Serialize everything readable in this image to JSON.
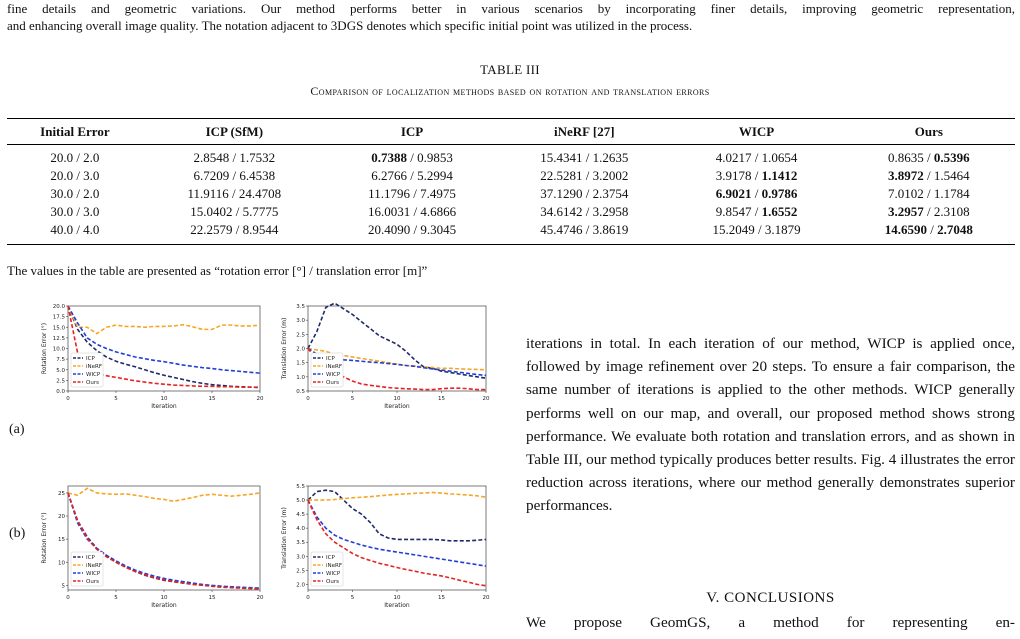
{
  "caption_top": {
    "line1": "fine details and geometric variations. Our method performs better in various scenarios by incorporating finer details, improving geometric representation,",
    "line2": "and enhancing overall image quality. The notation adjacent to 3DGS denotes which specific initial point was utilized in the process."
  },
  "table": {
    "label": "TABLE III",
    "title": "Comparison of localization methods based on rotation and translation errors",
    "headers": [
      "Initial Error",
      "ICP (SfM)",
      "ICP",
      "iNeRF [27]",
      "WICP",
      "Ours"
    ],
    "rows": [
      [
        {
          "a": "20.0 / 2.0"
        },
        {
          "a": "2.8548",
          "b": "1.7532"
        },
        {
          "a": "0.7388",
          "b": "0.9853",
          "ba": true
        },
        {
          "a": "15.4341",
          "b": "1.2635"
        },
        {
          "a": "4.0217",
          "b": "1.0654"
        },
        {
          "a": "0.8635",
          "b": "0.5396",
          "bb": true
        }
      ],
      [
        {
          "a": "20.0 / 3.0"
        },
        {
          "a": "6.7209",
          "b": "6.4538"
        },
        {
          "a": "6.2766",
          "b": "5.2994"
        },
        {
          "a": "22.5281",
          "b": "3.2002"
        },
        {
          "a": "3.9178",
          "b": "1.1412",
          "bb": true
        },
        {
          "a": "3.8972",
          "b": "1.5464",
          "ba": true
        }
      ],
      [
        {
          "a": "30.0 / 2.0"
        },
        {
          "a": "11.9116",
          "b": "24.4708"
        },
        {
          "a": "11.1796",
          "b": "7.4975"
        },
        {
          "a": "37.1290",
          "b": "2.3754"
        },
        {
          "a": "6.9021",
          "b": "0.9786",
          "ba": true,
          "bb": true
        },
        {
          "a": "7.0102",
          "b": "1.1784"
        }
      ],
      [
        {
          "a": "30.0 / 3.0"
        },
        {
          "a": "15.0402",
          "b": "5.7775"
        },
        {
          "a": "16.0031",
          "b": "4.6866"
        },
        {
          "a": "34.6142",
          "b": "3.2958"
        },
        {
          "a": "9.8547",
          "b": "1.6552",
          "bb": true
        },
        {
          "a": "3.2957",
          "b": "2.3108",
          "ba": true
        }
      ],
      [
        {
          "a": "40.0 / 4.0"
        },
        {
          "a": "22.2579",
          "b": "8.9544"
        },
        {
          "a": "20.4090",
          "b": "9.3045"
        },
        {
          "a": "45.4746",
          "b": "3.8619"
        },
        {
          "a": "15.2049",
          "b": "3.1879"
        },
        {
          "a": "14.6590",
          "b": "2.7048",
          "ba": true,
          "bb": true
        }
      ]
    ],
    "note": "The values in the table are presented as “rotation error [°] / translation error [m]”"
  },
  "figure": {
    "panel_a": "(a)",
    "panel_b": "(b)"
  },
  "chart_data": [
    {
      "type": "line",
      "panel": "(a)",
      "xlabel": "Iteration",
      "ylabel": "Rotation Error (°)",
      "xlim": [
        0,
        20
      ],
      "ylim": [
        0,
        20
      ],
      "xticks": [
        0,
        5,
        10,
        15,
        20
      ],
      "yticks": [
        0.0,
        2.5,
        5.0,
        7.5,
        10.0,
        12.5,
        15.0,
        17.5,
        20.0
      ],
      "ytick_labels": [
        "0.0",
        "2.5",
        "5.0",
        "7.5",
        "10.0",
        "12.5",
        "15.0",
        "17.5",
        "20.0"
      ],
      "legend": "lower-left",
      "x": [
        0,
        1,
        2,
        3,
        4,
        5,
        6,
        7,
        8,
        9,
        10,
        11,
        12,
        13,
        14,
        15,
        16,
        17,
        18,
        19,
        20
      ],
      "series": [
        {
          "name": "ICP",
          "color": "#1f2a6b",
          "values": [
            20,
            14.5,
            11.5,
            9.5,
            8,
            7,
            6.3,
            5.7,
            5,
            4.3,
            3.7,
            3.2,
            2.7,
            2.2,
            1.8,
            1.5,
            1.3,
            1.1,
            1.0,
            0.9,
            0.8
          ]
        },
        {
          "name": "iNeRF",
          "color": "#f5a623",
          "values": [
            20,
            15,
            15,
            13.5,
            15,
            15.5,
            15.2,
            15.2,
            15,
            15.2,
            15.2,
            15.3,
            15.6,
            15.1,
            14.5,
            14.5,
            15.5,
            15.5,
            15.3,
            15.3,
            15.5
          ]
        },
        {
          "name": "WICP",
          "color": "#1f3fd8",
          "values": [
            20,
            16,
            12.5,
            11,
            10,
            9.2,
            8.6,
            8,
            7.6,
            7.2,
            6.9,
            6.5,
            6.1,
            5.8,
            5.5,
            5.3,
            5,
            4.8,
            4.6,
            4.4,
            4.2
          ]
        },
        {
          "name": "Ours",
          "color": "#e62222",
          "values": [
            20,
            9,
            5,
            4,
            3.6,
            3.2,
            2.8,
            2.4,
            2.1,
            1.8,
            1.6,
            1.4,
            1.3,
            1.2,
            1.1,
            1.1,
            1.0,
            1.0,
            0.9,
            0.9,
            0.9
          ]
        }
      ]
    },
    {
      "type": "line",
      "panel": "(a)",
      "xlabel": "Iteration",
      "ylabel": "Translation Error (m)",
      "xlim": [
        0,
        20
      ],
      "ylim": [
        0.5,
        3.5
      ],
      "xticks": [
        0,
        5,
        10,
        15,
        20
      ],
      "yticks": [
        0.5,
        1.0,
        1.5,
        2.0,
        2.5,
        3.0,
        3.5
      ],
      "ytick_labels": [
        "0.5",
        "1.0",
        "1.5",
        "2.0",
        "2.5",
        "3.0",
        "3.5"
      ],
      "legend": "lower-left",
      "x": [
        0,
        1,
        2,
        3,
        4,
        5,
        6,
        7,
        8,
        9,
        10,
        11,
        12,
        13,
        14,
        15,
        16,
        17,
        18,
        19,
        20
      ],
      "series": [
        {
          "name": "ICP",
          "color": "#1f2a6b",
          "values": [
            2.0,
            2.6,
            3.45,
            3.6,
            3.4,
            3.2,
            2.95,
            2.7,
            2.45,
            2.3,
            2.15,
            1.9,
            1.6,
            1.35,
            1.3,
            1.2,
            1.15,
            1.1,
            1.05,
            1.0,
            0.95
          ]
        },
        {
          "name": "iNeRF",
          "color": "#f5a623",
          "values": [
            2.0,
            1.95,
            1.9,
            1.8,
            1.75,
            1.7,
            1.65,
            1.6,
            1.55,
            1.5,
            1.45,
            1.4,
            1.38,
            1.35,
            1.33,
            1.3,
            1.3,
            1.28,
            1.27,
            1.26,
            1.25
          ]
        },
        {
          "name": "WICP",
          "color": "#1f3fd8",
          "values": [
            2.0,
            1.8,
            1.7,
            1.65,
            1.6,
            1.58,
            1.55,
            1.52,
            1.5,
            1.47,
            1.44,
            1.4,
            1.37,
            1.32,
            1.28,
            1.24,
            1.2,
            1.16,
            1.12,
            1.08,
            1.05
          ]
        },
        {
          "name": "Ours",
          "color": "#e62222",
          "values": [
            2.0,
            1.6,
            1.3,
            1.1,
            1.0,
            0.85,
            0.75,
            0.7,
            0.66,
            0.62,
            0.6,
            0.58,
            0.57,
            0.55,
            0.55,
            0.58,
            0.6,
            0.6,
            0.58,
            0.55,
            0.55
          ]
        }
      ]
    },
    {
      "type": "line",
      "panel": "(b)",
      "xlabel": "Iteration",
      "ylabel": "Rotation Error (°)",
      "xlim": [
        0,
        20
      ],
      "ylim": [
        4,
        26.5
      ],
      "xticks": [
        0,
        5,
        10,
        15,
        20
      ],
      "yticks": [
        5,
        10,
        15,
        20,
        25
      ],
      "ytick_labels": [
        "5",
        "10",
        "15",
        "20",
        "25"
      ],
      "legend": "lower-left",
      "x": [
        0,
        1,
        2,
        3,
        4,
        5,
        6,
        7,
        8,
        9,
        10,
        11,
        12,
        13,
        14,
        15,
        16,
        17,
        18,
        19,
        20
      ],
      "series": [
        {
          "name": "ICP",
          "color": "#1f2a6b",
          "values": [
            25,
            19,
            15.5,
            13,
            11.5,
            10,
            9,
            8,
            7.2,
            6.6,
            6.1,
            5.8,
            5.5,
            5.3,
            5.1,
            4.9,
            4.8,
            4.6,
            4.5,
            4.4,
            4.3
          ]
        },
        {
          "name": "iNeRF",
          "color": "#f5a623",
          "values": [
            25,
            24.5,
            26,
            25,
            24.8,
            24.7,
            24.8,
            24.5,
            24.2,
            23.8,
            23.6,
            23.2,
            23.6,
            24,
            24.5,
            24.7,
            24.5,
            24.3,
            24.5,
            24.7,
            25
          ]
        },
        {
          "name": "WICP",
          "color": "#1f3fd8",
          "values": [
            25,
            18.5,
            15,
            13,
            11.5,
            10.3,
            9.2,
            8.3,
            7.6,
            7,
            6.5,
            6.1,
            5.8,
            5.5,
            5.2,
            5,
            4.8,
            4.7,
            4.6,
            4.5,
            4.4
          ]
        },
        {
          "name": "Ours",
          "color": "#e62222",
          "values": [
            25,
            19,
            15.2,
            12.8,
            11.2,
            10,
            8.9,
            8,
            7.3,
            6.7,
            6.2,
            5.8,
            5.5,
            5.2,
            5,
            4.8,
            4.6,
            4.5,
            4.4,
            4.3,
            4.2
          ]
        }
      ]
    },
    {
      "type": "line",
      "panel": "(b)",
      "xlabel": "Iteration",
      "ylabel": "Translation Error (m)",
      "xlim": [
        0,
        20
      ],
      "ylim": [
        1.8,
        5.5
      ],
      "xticks": [
        0,
        5,
        10,
        15,
        20
      ],
      "yticks": [
        2.0,
        2.5,
        3.0,
        3.5,
        4.0,
        4.5,
        5.0,
        5.5
      ],
      "ytick_labels": [
        "2.0",
        "2.5",
        "3.0",
        "3.5",
        "4.0",
        "4.5",
        "5.0",
        "5.5"
      ],
      "legend": "lower-left",
      "x": [
        0,
        1,
        2,
        3,
        4,
        5,
        6,
        7,
        8,
        9,
        10,
        11,
        12,
        13,
        14,
        15,
        16,
        17,
        18,
        19,
        20
      ],
      "series": [
        {
          "name": "ICP",
          "color": "#1f2a6b",
          "values": [
            5.0,
            5.3,
            5.35,
            5.3,
            5.0,
            4.7,
            4.5,
            4.2,
            3.8,
            3.65,
            3.6,
            3.6,
            3.6,
            3.6,
            3.6,
            3.58,
            3.55,
            3.55,
            3.55,
            3.57,
            3.6
          ]
        },
        {
          "name": "iNeRF",
          "color": "#f5a623",
          "values": [
            5.0,
            5.0,
            5.0,
            5.02,
            5.05,
            5.08,
            5.1,
            5.12,
            5.15,
            5.18,
            5.2,
            5.22,
            5.24,
            5.25,
            5.27,
            5.25,
            5.22,
            5.2,
            5.18,
            5.15,
            5.1
          ]
        },
        {
          "name": "WICP",
          "color": "#1f3fd8",
          "values": [
            5.0,
            4.4,
            4.0,
            3.75,
            3.6,
            3.5,
            3.4,
            3.32,
            3.25,
            3.2,
            3.15,
            3.1,
            3.05,
            3.0,
            2.95,
            2.9,
            2.85,
            2.8,
            2.75,
            2.7,
            2.65
          ]
        },
        {
          "name": "Ours",
          "color": "#e62222",
          "values": [
            5.0,
            4.3,
            3.8,
            3.5,
            3.3,
            3.1,
            2.95,
            2.85,
            2.75,
            2.68,
            2.6,
            2.53,
            2.47,
            2.4,
            2.35,
            2.3,
            2.23,
            2.15,
            2.08,
            2.0,
            1.95
          ]
        }
      ]
    }
  ],
  "body_text": "iterations in total. In each iteration of our method, WICP is applied once, followed by image refinement over 20 steps. To ensure a fair comparison, the same number of iterations is applied to the other methods. WICP generally performs well on our map, and overall, our proposed method shows strong performance. We evaluate both rotation and translation errors, and as shown in Table III, our method typically produces better results. Fig. 4 illustrates the error reduction across iterations, where our method generally demonstrates superior performances.",
  "section_heading": "V. CONCLUSIONS",
  "last_line": "We propose GeomGS, a method for representing en-"
}
